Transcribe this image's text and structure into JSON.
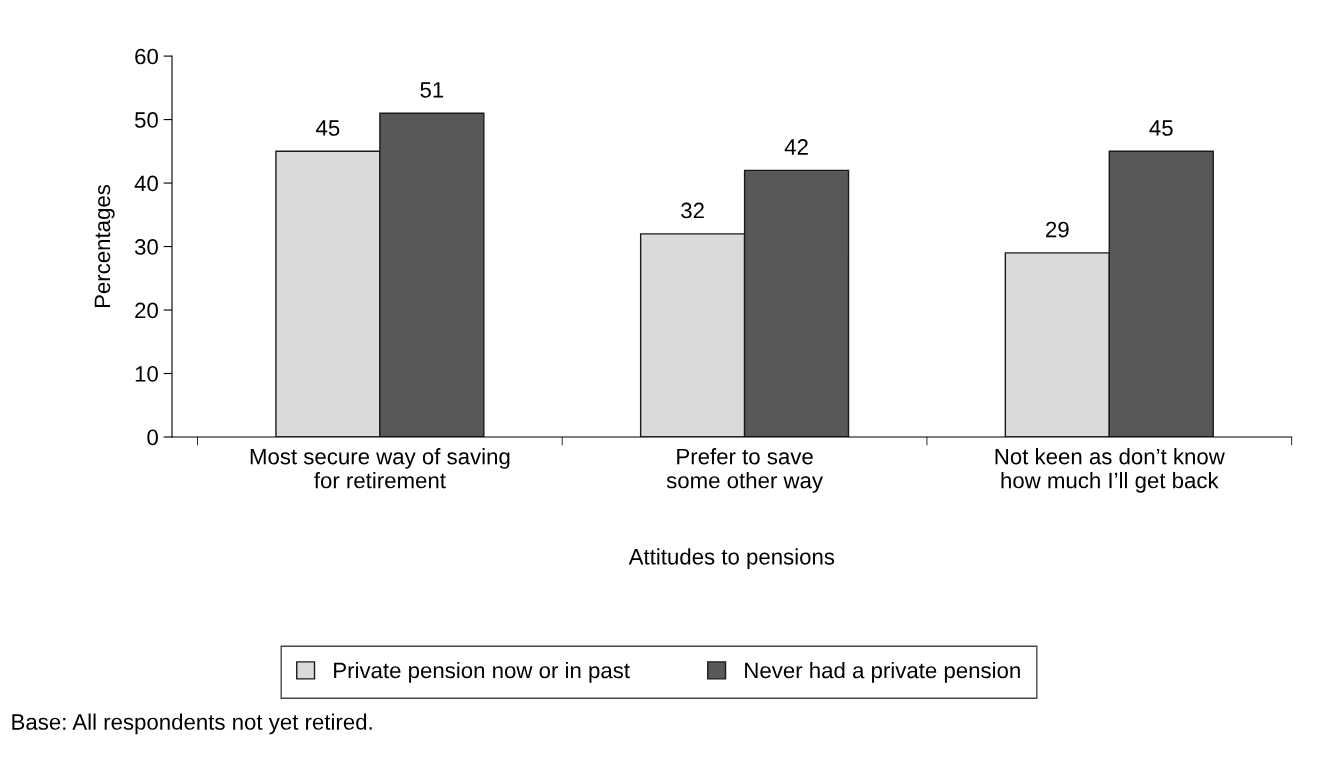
{
  "chart_data": {
    "type": "bar",
    "xlabel": "Attitudes to pensions",
    "ylabel": "Percentages",
    "categories": [
      "Most secure way of saving\nfor retirement",
      "Prefer to save\nsome other way",
      "Not keen as don’t know\nhow much I’ll get back"
    ],
    "series": [
      {
        "name": "Private pension now or in past",
        "color": "#d9dadb",
        "values": [
          45,
          32,
          29
        ]
      },
      {
        "name": "Never had a private pension",
        "color": "#58585a",
        "values": [
          51,
          42,
          45
        ]
      }
    ],
    "ylim": [
      0,
      60
    ],
    "yticks": [
      0,
      10,
      20,
      30,
      40,
      50,
      60
    ],
    "grid": false,
    "data_labels": true,
    "legend": "bottom",
    "annotations": [
      "Base: All respondents not yet retired."
    ]
  }
}
